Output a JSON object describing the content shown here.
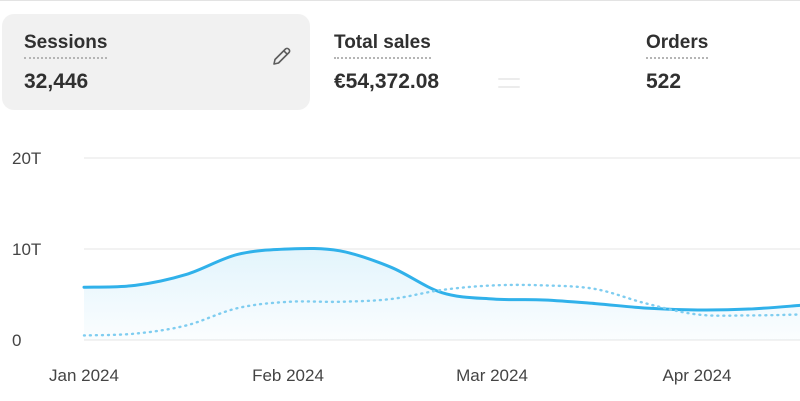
{
  "metrics": [
    {
      "title": "Sessions",
      "value": "32,446",
      "active": true
    },
    {
      "title": "Total sales",
      "value": "€54,372.08",
      "active": false
    },
    {
      "title": "Orders",
      "value": "522",
      "active": false
    }
  ],
  "icons": {
    "edit": "pencil-icon"
  },
  "chart_data": {
    "type": "line",
    "y_ticks": [
      "20T",
      "10T",
      "0"
    ],
    "ylim": [
      0,
      20
    ],
    "x_ticks": [
      "Jan 2024",
      "Feb 2024",
      "Mar 2024",
      "Apr 2024"
    ],
    "grid": true,
    "series": [
      {
        "style": "solid",
        "color": "#30b1ea",
        "values": [
          5.8,
          6.0,
          7.2,
          9.4,
          10.0,
          9.8,
          8.0,
          5.2,
          4.5,
          4.4,
          4.0,
          3.5,
          3.3,
          3.4,
          3.8
        ]
      },
      {
        "style": "dotted",
        "color": "#7fcdf0",
        "values": [
          0.5,
          0.7,
          1.6,
          3.5,
          4.2,
          4.2,
          4.5,
          5.5,
          6.0,
          6.0,
          5.6,
          4.0,
          2.8,
          2.7,
          2.8
        ]
      }
    ]
  }
}
